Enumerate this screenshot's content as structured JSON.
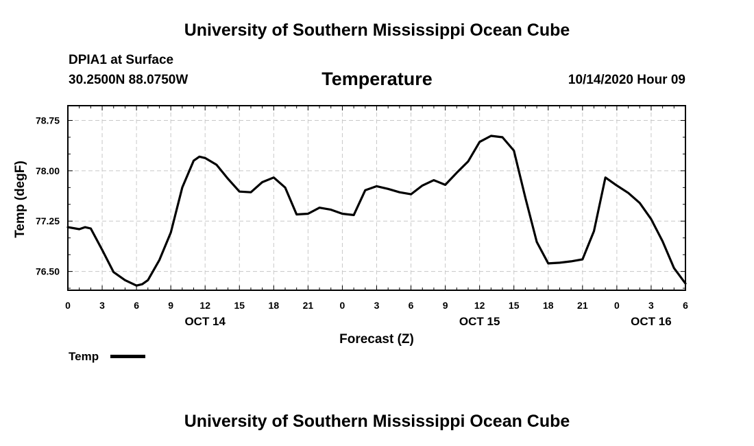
{
  "header": {
    "title": "University of Southern Mississippi Ocean Cube",
    "station": "DPIA1 at Surface",
    "coords": "30.2500N 88.0750W",
    "variable": "Temperature",
    "datetime": "10/14/2020 Hour 09"
  },
  "footer": {
    "title": "University of Southern Mississippi Ocean Cube"
  },
  "legend": {
    "label": "Temp"
  },
  "chart_data": {
    "type": "line",
    "title": "Temperature",
    "xlabel": "Forecast (Z)",
    "ylabel": "Temp (degF)",
    "x_unit": "hours since 2020-10-14 00Z",
    "xlim": [
      0,
      54
    ],
    "ylim": [
      76.22,
      78.97
    ],
    "grid": true,
    "legend_placement": "bottom-left",
    "yticks": [
      76.5,
      77.25,
      78.0,
      78.75
    ],
    "ytick_labels": [
      "76.50",
      "77.25",
      "78.00",
      "78.75"
    ],
    "xticks": [
      0,
      3,
      6,
      9,
      12,
      15,
      18,
      21,
      24,
      27,
      30,
      33,
      36,
      39,
      42,
      45,
      48,
      51,
      54
    ],
    "xtick_labels": [
      "0",
      "3",
      "6",
      "9",
      "12",
      "15",
      "18",
      "21",
      "0",
      "3",
      "6",
      "9",
      "12",
      "15",
      "18",
      "21",
      "0",
      "3",
      "6"
    ],
    "date_labels": [
      {
        "x": 12,
        "label": "OCT 14"
      },
      {
        "x": 36,
        "label": "OCT 15"
      },
      {
        "x": 51,
        "label": "OCT 16"
      }
    ],
    "series": [
      {
        "name": "Temp",
        "x": [
          0,
          1,
          1.5,
          2,
          3,
          4,
          5,
          6,
          6.5,
          7,
          8,
          9,
          10,
          11,
          11.5,
          12,
          13,
          14,
          15,
          16,
          17,
          18,
          19,
          20,
          21,
          22,
          23,
          24,
          25,
          26,
          27,
          28,
          29,
          30,
          31,
          32,
          33,
          34,
          35,
          36,
          37,
          38,
          39,
          40,
          41,
          42,
          43,
          44,
          45,
          46,
          47,
          48,
          49,
          50,
          51,
          52,
          53,
          54
        ],
        "y": [
          77.16,
          77.13,
          77.16,
          77.14,
          76.82,
          76.49,
          76.37,
          76.29,
          76.31,
          76.37,
          76.67,
          77.08,
          77.75,
          78.15,
          78.21,
          78.19,
          78.09,
          77.88,
          77.69,
          77.68,
          77.83,
          77.9,
          77.75,
          77.35,
          77.36,
          77.45,
          77.42,
          77.36,
          77.34,
          77.71,
          77.77,
          77.73,
          77.68,
          77.65,
          77.78,
          77.86,
          77.79,
          77.97,
          78.14,
          78.43,
          78.52,
          78.5,
          78.3,
          77.6,
          76.94,
          76.62,
          76.63,
          76.65,
          76.68,
          77.1,
          77.9,
          77.78,
          77.67,
          77.52,
          77.28,
          76.95,
          76.55,
          76.32
        ]
      }
    ]
  }
}
